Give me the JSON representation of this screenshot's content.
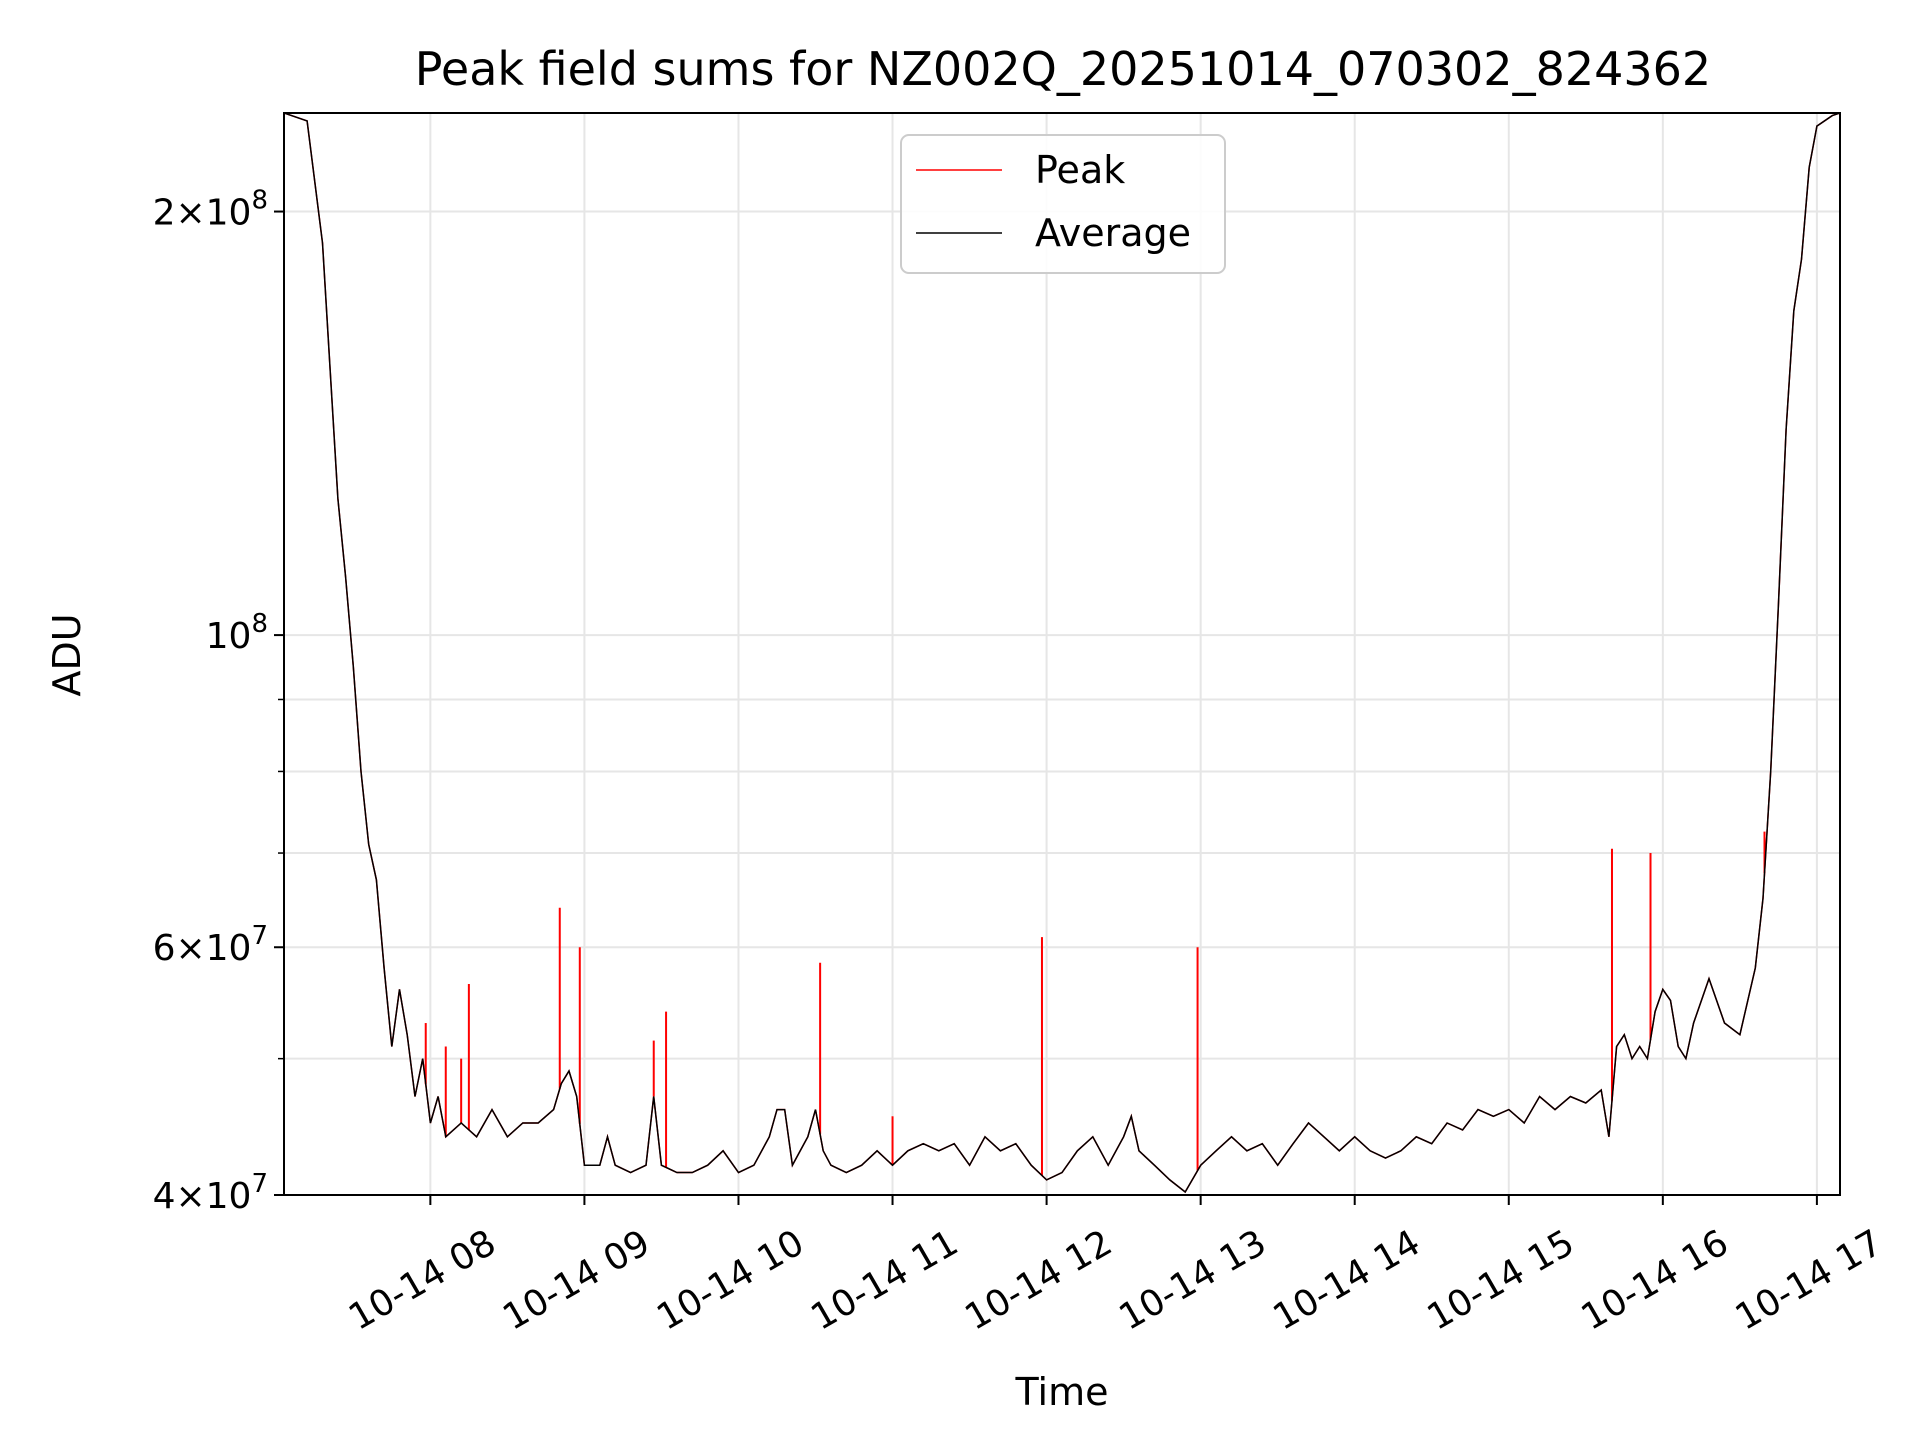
{
  "chart_data": {
    "type": "line",
    "title": "Peak field sums for NZ002Q_20251014_070302_824362",
    "xlabel": "Time",
    "ylabel": "ADU",
    "yscale": "log",
    "ylim": [
      40000000,
      235000000
    ],
    "xlim_hours": [
      7.05,
      17.15
    ],
    "grid": true,
    "legend_position": "upper-center",
    "x_ticks": [
      {
        "value": 8,
        "label": "10-14 08"
      },
      {
        "value": 9,
        "label": "10-14 09"
      },
      {
        "value": 10,
        "label": "10-14 10"
      },
      {
        "value": 11,
        "label": "10-14 11"
      },
      {
        "value": 12,
        "label": "10-14 12"
      },
      {
        "value": 13,
        "label": "10-14 13"
      },
      {
        "value": 14,
        "label": "10-14 14"
      },
      {
        "value": 15,
        "label": "10-14 15"
      },
      {
        "value": 16,
        "label": "10-14 16"
      },
      {
        "value": 17,
        "label": "10-14 17"
      }
    ],
    "y_ticks": [
      {
        "value": 40000000,
        "mant": "4",
        "exp": "7"
      },
      {
        "value": 60000000,
        "mant": "6",
        "exp": "7"
      },
      {
        "value": 100000000,
        "mant": "",
        "exp": "8"
      },
      {
        "value": 200000000,
        "mant": "2",
        "exp": "8"
      }
    ],
    "y_minor_ticks": [
      50000000,
      70000000,
      80000000,
      90000000
    ],
    "series": [
      {
        "name": "Average",
        "color": "#000000",
        "points": [
          [
            7.05,
            235000000
          ],
          [
            7.2,
            232000000
          ],
          [
            7.3,
            190000000
          ],
          [
            7.4,
            125000000
          ],
          [
            7.45,
            110000000
          ],
          [
            7.5,
            95000000
          ],
          [
            7.55,
            80000000
          ],
          [
            7.6,
            71000000
          ],
          [
            7.65,
            67000000
          ],
          [
            7.7,
            58000000
          ],
          [
            7.75,
            51000000
          ],
          [
            7.8,
            56000000
          ],
          [
            7.85,
            52000000
          ],
          [
            7.9,
            47000000
          ],
          [
            7.95,
            50000000
          ],
          [
            8.0,
            45000000
          ],
          [
            8.05,
            47000000
          ],
          [
            8.1,
            44000000
          ],
          [
            8.2,
            45000000
          ],
          [
            8.3,
            44000000
          ],
          [
            8.4,
            46000000
          ],
          [
            8.5,
            44000000
          ],
          [
            8.6,
            45000000
          ],
          [
            8.7,
            45000000
          ],
          [
            8.8,
            46000000
          ],
          [
            8.85,
            48000000
          ],
          [
            8.9,
            49000000
          ],
          [
            8.95,
            47000000
          ],
          [
            9.0,
            42000000
          ],
          [
            9.1,
            42000000
          ],
          [
            9.15,
            44000000
          ],
          [
            9.2,
            42000000
          ],
          [
            9.3,
            41500000
          ],
          [
            9.4,
            42000000
          ],
          [
            9.45,
            47000000
          ],
          [
            9.5,
            42000000
          ],
          [
            9.6,
            41500000
          ],
          [
            9.7,
            41500000
          ],
          [
            9.8,
            42000000
          ],
          [
            9.9,
            43000000
          ],
          [
            10.0,
            41500000
          ],
          [
            10.1,
            42000000
          ],
          [
            10.2,
            44000000
          ],
          [
            10.25,
            46000000
          ],
          [
            10.3,
            46000000
          ],
          [
            10.35,
            42000000
          ],
          [
            10.45,
            44000000
          ],
          [
            10.5,
            46000000
          ],
          [
            10.55,
            43000000
          ],
          [
            10.6,
            42000000
          ],
          [
            10.7,
            41500000
          ],
          [
            10.8,
            42000000
          ],
          [
            10.9,
            43000000
          ],
          [
            11.0,
            42000000
          ],
          [
            11.1,
            43000000
          ],
          [
            11.2,
            43500000
          ],
          [
            11.3,
            43000000
          ],
          [
            11.4,
            43500000
          ],
          [
            11.5,
            42000000
          ],
          [
            11.6,
            44000000
          ],
          [
            11.7,
            43000000
          ],
          [
            11.8,
            43500000
          ],
          [
            11.9,
            42000000
          ],
          [
            12.0,
            41000000
          ],
          [
            12.1,
            41500000
          ],
          [
            12.2,
            43000000
          ],
          [
            12.3,
            44000000
          ],
          [
            12.4,
            42000000
          ],
          [
            12.5,
            44000000
          ],
          [
            12.55,
            45500000
          ],
          [
            12.6,
            43000000
          ],
          [
            12.7,
            42000000
          ],
          [
            12.8,
            41000000
          ],
          [
            12.9,
            40200000
          ],
          [
            13.0,
            42000000
          ],
          [
            13.1,
            43000000
          ],
          [
            13.2,
            44000000
          ],
          [
            13.3,
            43000000
          ],
          [
            13.4,
            43500000
          ],
          [
            13.5,
            42000000
          ],
          [
            13.6,
            43500000
          ],
          [
            13.7,
            45000000
          ],
          [
            13.8,
            44000000
          ],
          [
            13.9,
            43000000
          ],
          [
            14.0,
            44000000
          ],
          [
            14.1,
            43000000
          ],
          [
            14.2,
            42500000
          ],
          [
            14.3,
            43000000
          ],
          [
            14.4,
            44000000
          ],
          [
            14.5,
            43500000
          ],
          [
            14.6,
            45000000
          ],
          [
            14.7,
            44500000
          ],
          [
            14.8,
            46000000
          ],
          [
            14.9,
            45500000
          ],
          [
            15.0,
            46000000
          ],
          [
            15.1,
            45000000
          ],
          [
            15.2,
            47000000
          ],
          [
            15.3,
            46000000
          ],
          [
            15.4,
            47000000
          ],
          [
            15.5,
            46500000
          ],
          [
            15.6,
            47500000
          ],
          [
            15.65,
            44000000
          ],
          [
            15.7,
            51000000
          ],
          [
            15.75,
            52000000
          ],
          [
            15.8,
            50000000
          ],
          [
            15.85,
            51000000
          ],
          [
            15.9,
            50000000
          ],
          [
            15.95,
            54000000
          ],
          [
            16.0,
            56000000
          ],
          [
            16.05,
            55000000
          ],
          [
            16.1,
            51000000
          ],
          [
            16.15,
            50000000
          ],
          [
            16.2,
            53000000
          ],
          [
            16.3,
            57000000
          ],
          [
            16.4,
            53000000
          ],
          [
            16.5,
            52000000
          ],
          [
            16.6,
            58000000
          ],
          [
            16.65,
            65000000
          ],
          [
            16.7,
            80000000
          ],
          [
            16.75,
            105000000
          ],
          [
            16.8,
            140000000
          ],
          [
            16.85,
            170000000
          ],
          [
            16.9,
            185000000
          ],
          [
            16.95,
            215000000
          ],
          [
            17.0,
            230000000
          ],
          [
            17.1,
            234000000
          ],
          [
            17.15,
            235000000
          ]
        ]
      },
      {
        "name": "Peak",
        "color": "#ff0000",
        "baseline_series": "Average",
        "spikes": [
          [
            7.97,
            53000000
          ],
          [
            8.1,
            51000000
          ],
          [
            8.2,
            50000000
          ],
          [
            8.25,
            56500000
          ],
          [
            8.84,
            64000000
          ],
          [
            8.97,
            60000000
          ],
          [
            9.45,
            51500000
          ],
          [
            9.53,
            54000000
          ],
          [
            10.53,
            58500000
          ],
          [
            11.0,
            45500000
          ],
          [
            11.97,
            61000000
          ],
          [
            12.98,
            60000000
          ],
          [
            15.67,
            70500000
          ],
          [
            15.92,
            70000000
          ],
          [
            16.66,
            72500000
          ]
        ]
      }
    ]
  }
}
